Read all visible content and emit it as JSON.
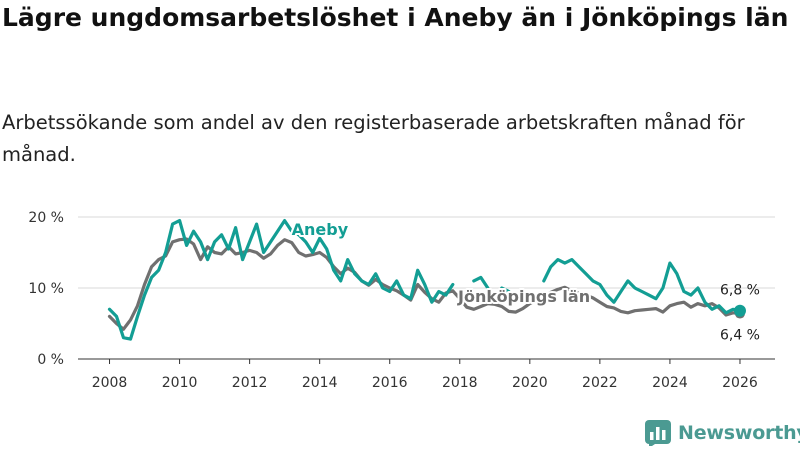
{
  "title": "Lägre ungdomsarbetslöshet i Aneby än i Jönköpings län",
  "subtitle": "Arbetssökande som andel av den registerbaserade arbetskraften månad för månad.",
  "brand": "Newsworthy",
  "colors": {
    "aneby": "#139e94",
    "lan": "#707070",
    "grid": "#d9d9d9",
    "axis": "#333333",
    "brand": "#4b9a92"
  },
  "chart_data": {
    "type": "line",
    "title": "Lägre ungdomsarbetslöshet i Aneby än i Jönköpings län",
    "xlabel": "",
    "ylabel": "",
    "xlim": [
      2007.1,
      2027.0
    ],
    "ylim": [
      0,
      20
    ],
    "y_ticks": [
      0,
      10,
      20
    ],
    "y_tick_labels": [
      "0 %",
      "10 %",
      "20 %"
    ],
    "x_ticks": [
      2008,
      2010,
      2012,
      2014,
      2016,
      2018,
      2020,
      2022,
      2024,
      2026
    ],
    "x_tick_labels": [
      "2008",
      "2010",
      "2012",
      "2014",
      "2016",
      "2018",
      "2020",
      "2022",
      "2024",
      "2026"
    ],
    "grid": true,
    "series": [
      {
        "name": "Aneby",
        "label": "Aneby",
        "end_label": "6,8 %",
        "x": [
          2008.0,
          2008.2,
          2008.4,
          2008.6,
          2008.8,
          2009.0,
          2009.2,
          2009.4,
          2009.6,
          2009.8,
          2010.0,
          2010.2,
          2010.4,
          2010.6,
          2010.8,
          2011.0,
          2011.2,
          2011.4,
          2011.6,
          2011.8,
          2012.0,
          2012.2,
          2012.4,
          2012.6,
          2012.8,
          2013.0,
          2013.2,
          2013.4,
          2013.6,
          2013.8,
          2014.0,
          2014.2,
          2014.4,
          2014.6,
          2014.8,
          2015.0,
          2015.2,
          2015.4,
          2015.6,
          2015.8,
          2016.0,
          2016.2,
          2016.4,
          2016.6,
          2016.8,
          2017.0,
          2017.2,
          2017.4,
          2017.6,
          2017.8,
          null,
          2018.4,
          2018.6,
          2018.8,
          2019.0,
          2019.2,
          2019.4,
          null,
          2020.4,
          2020.6,
          2020.8,
          2021.0,
          2021.2,
          2021.4,
          2021.6,
          2021.8,
          2022.0,
          2022.2,
          2022.4,
          2022.6,
          2022.8,
          2023.0,
          2023.2,
          2023.4,
          2023.6,
          2023.8,
          2024.0,
          2024.2,
          2024.4,
          2024.6,
          2024.8,
          2025.0,
          2025.2,
          2025.4,
          2025.6,
          2025.8,
          2026.0
        ],
        "values": [
          7.0,
          6.0,
          3.0,
          2.8,
          6.0,
          9.0,
          11.5,
          12.5,
          15.0,
          19.0,
          19.5,
          16.0,
          18.0,
          16.5,
          14.0,
          16.5,
          17.5,
          15.5,
          18.5,
          14.0,
          16.5,
          19.0,
          15.0,
          16.5,
          18.0,
          19.5,
          18.0,
          17.5,
          16.5,
          15.0,
          17.0,
          15.5,
          12.5,
          11.0,
          14.0,
          12.0,
          11.0,
          10.5,
          12.0,
          10.0,
          9.5,
          11.0,
          9.0,
          8.5,
          12.5,
          10.5,
          8.0,
          9.5,
          9.0,
          10.5,
          null,
          11.0,
          11.5,
          10.0,
          8.0,
          10.0,
          9.5,
          null,
          11.0,
          13.0,
          14.0,
          13.5,
          14.0,
          13.0,
          12.0,
          11.0,
          10.5,
          9.0,
          8.0,
          9.5,
          11.0,
          10.0,
          9.5,
          9.0,
          8.5,
          10.0,
          13.5,
          12.0,
          9.5,
          9.0,
          10.0,
          8.0,
          7.0,
          7.5,
          6.5,
          7.0,
          6.8
        ]
      },
      {
        "name": "Jönköpings län",
        "label": "Jönköpings län",
        "end_label": "6,4 %",
        "x": [
          2008.0,
          2008.2,
          2008.4,
          2008.6,
          2008.8,
          2009.0,
          2009.2,
          2009.4,
          2009.6,
          2009.8,
          2010.0,
          2010.2,
          2010.4,
          2010.6,
          2010.8,
          2011.0,
          2011.2,
          2011.4,
          2011.6,
          2011.8,
          2012.0,
          2012.2,
          2012.4,
          2012.6,
          2012.8,
          2013.0,
          2013.2,
          2013.4,
          2013.6,
          2013.8,
          2014.0,
          2014.2,
          2014.4,
          2014.6,
          2014.8,
          2015.0,
          2015.2,
          2015.4,
          2015.6,
          2015.8,
          2016.0,
          2016.2,
          2016.4,
          2016.6,
          2016.8,
          2017.0,
          2017.2,
          2017.4,
          2017.6,
          2017.8,
          2018.0,
          2018.2,
          2018.4,
          2018.6,
          2018.8,
          2019.0,
          2019.2,
          2019.4,
          2019.6,
          2019.8,
          2020.0,
          2020.2,
          2020.4,
          2020.6,
          2020.8,
          2021.0,
          2021.2,
          2021.4,
          2021.6,
          2021.8,
          2022.0,
          2022.2,
          2022.4,
          2022.6,
          2022.8,
          2023.0,
          2023.2,
          2023.4,
          2023.6,
          2023.8,
          2024.0,
          2024.2,
          2024.4,
          2024.6,
          2024.8,
          2025.0,
          2025.2,
          2025.4,
          2025.6,
          2025.8,
          2026.0
        ],
        "values": [
          6.0,
          5.0,
          4.2,
          5.5,
          7.5,
          10.5,
          13.0,
          14.0,
          14.5,
          16.5,
          16.8,
          16.9,
          16.2,
          14.0,
          15.8,
          15.0,
          14.8,
          15.8,
          14.8,
          15.0,
          15.3,
          15.0,
          14.2,
          14.8,
          16.0,
          16.8,
          16.4,
          15.0,
          14.5,
          14.7,
          15.0,
          14.3,
          13.0,
          12.0,
          12.8,
          12.2,
          11.0,
          10.4,
          11.2,
          10.5,
          10.0,
          9.6,
          9.0,
          8.3,
          10.5,
          9.4,
          8.5,
          8.0,
          9.3,
          9.6,
          8.5,
          7.3,
          7.0,
          7.4,
          7.8,
          7.7,
          7.4,
          6.7,
          6.6,
          7.1,
          7.8,
          8.3,
          8.7,
          9.4,
          9.8,
          10.1,
          9.6,
          9.3,
          9.0,
          8.6,
          8.0,
          7.4,
          7.2,
          6.7,
          6.5,
          6.8,
          6.9,
          7.0,
          7.1,
          6.6,
          7.5,
          7.8,
          8.0,
          7.3,
          7.8,
          7.5,
          7.8,
          7.2,
          6.2,
          6.5,
          6.4
        ]
      }
    ]
  }
}
